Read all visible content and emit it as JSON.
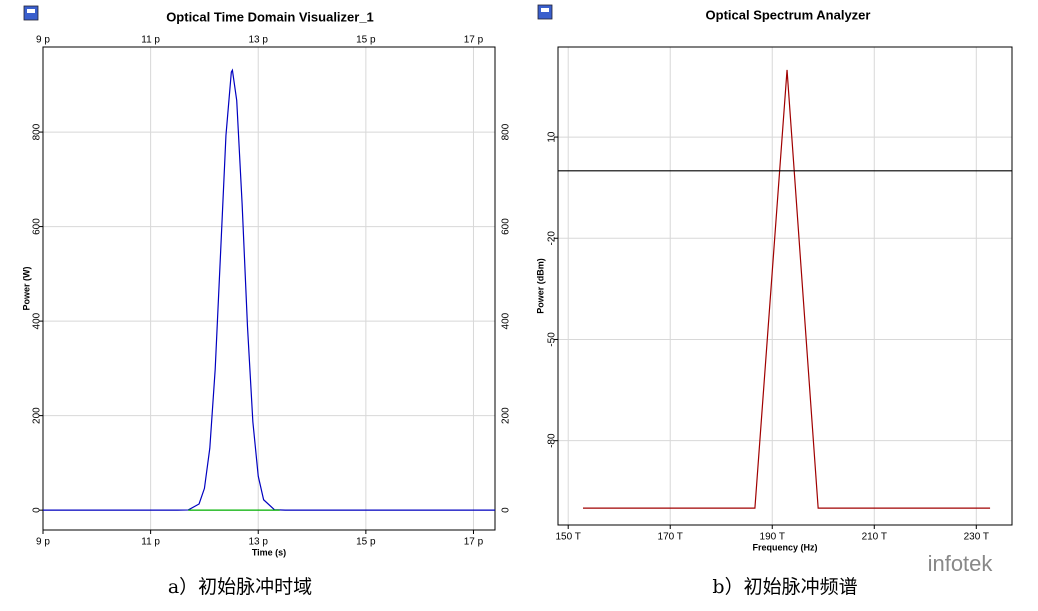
{
  "chart_data": [
    {
      "type": "line",
      "title": "Optical Time Domain Visualizer_1",
      "x_label": "Time (s)",
      "y_label": "Power (W)",
      "caption": "a）初始脉冲时域",
      "xlim": [
        9,
        17.4
      ],
      "ylim": [
        -42,
        980
      ],
      "xticks": [
        {
          "value": 9,
          "label": "9 p"
        },
        {
          "value": 11,
          "label": "11 p"
        },
        {
          "value": 13,
          "label": "13 p"
        },
        {
          "value": 15,
          "label": "15 p"
        },
        {
          "value": 17,
          "label": "17 p"
        }
      ],
      "yticks": [
        0,
        200,
        400,
        600,
        800
      ],
      "grid": true,
      "series": [
        {
          "color": "#0000c0",
          "x": [
            9,
            10,
            11,
            11.5,
            11.7,
            11.9,
            12.0,
            12.1,
            12.2,
            12.3,
            12.4,
            12.5,
            12.52,
            12.6,
            12.7,
            12.8,
            12.9,
            13.0,
            13.1,
            13.3,
            13.5,
            14,
            15,
            16,
            17,
            17.4
          ],
          "values": [
            0,
            0,
            0,
            0,
            0.5,
            13,
            46,
            131,
            298,
            544,
            793,
            927,
            931,
            867,
            649,
            389,
            187,
            72,
            22,
            1,
            0,
            0,
            0,
            0,
            0,
            0
          ]
        },
        {
          "color": "#00b000",
          "x": [
            11.7,
            13.4
          ],
          "values": [
            0,
            0
          ]
        }
      ]
    },
    {
      "type": "line",
      "title": "Optical Spectrum Analyzer",
      "x_label": "Frequency (Hz)",
      "y_label": "Power (dBm)",
      "caption": "b）初始脉冲频谱",
      "xlim": [
        148,
        237
      ],
      "ylim": [
        -105,
        36.7
      ],
      "xticks": [
        {
          "value": 150,
          "label": "150 T"
        },
        {
          "value": 170,
          "label": "170 T"
        },
        {
          "value": 190,
          "label": "190 T"
        },
        {
          "value": 210,
          "label": "210 T"
        },
        {
          "value": 230,
          "label": "230 T"
        }
      ],
      "yticks": [
        10,
        -20,
        -50,
        -80
      ],
      "grid": true,
      "series": [
        {
          "color": "#a00000",
          "x": [
            152.9,
            186.6,
            192.9,
            199,
            232.7
          ],
          "values": [
            -100,
            -100,
            29.9,
            -100,
            -100
          ]
        },
        {
          "color": "#000000",
          "x": [
            148,
            237
          ],
          "values": [
            0,
            0
          ]
        }
      ]
    }
  ],
  "watermark": "infotek"
}
